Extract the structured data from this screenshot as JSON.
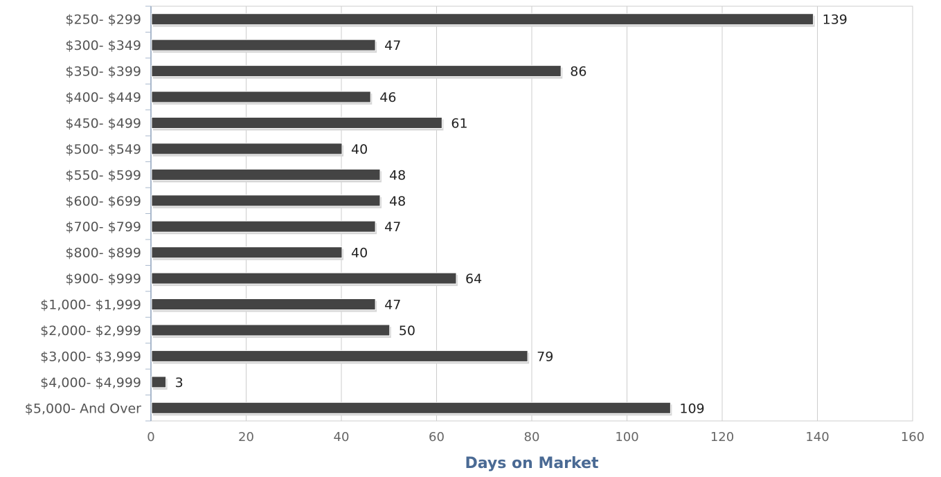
{
  "chart_data": {
    "type": "bar",
    "orientation": "horizontal",
    "categories": [
      "$250- $299",
      "$300- $349",
      "$350- $399",
      "$400- $449",
      "$450- $499",
      "$500- $549",
      "$550- $599",
      "$600- $699",
      "$700- $799",
      "$800- $899",
      "$900- $999",
      "$1,000- $1,999",
      "$2,000- $2,999",
      "$3,000- $3,999",
      "$4,000- $4,999",
      "$5,000- And Over"
    ],
    "values": [
      139,
      47,
      86,
      46,
      61,
      40,
      48,
      48,
      47,
      40,
      64,
      47,
      50,
      79,
      3,
      109
    ],
    "data_labels": [
      "139",
      "47",
      "86",
      "46",
      "61",
      "40",
      "48",
      "48",
      "47",
      "40",
      "64",
      "47",
      "50",
      "79",
      "3",
      "109"
    ],
    "xlabel": "Days on Market",
    "ylabel": "",
    "title": "",
    "xlim": [
      0,
      160
    ],
    "xticks": [
      "0",
      "20",
      "40",
      "60",
      "80",
      "100",
      "120",
      "140",
      "160"
    ],
    "grid": "vertical",
    "legend": "none",
    "colors": {
      "bar": "#444444",
      "grid": "#cccccc",
      "axis_title": "#4a6a94"
    }
  }
}
